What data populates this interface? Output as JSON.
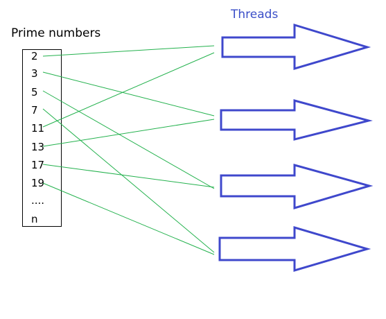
{
  "labels": {
    "primes_title": "Prime numbers",
    "threads_title": "Threads"
  },
  "primes": [
    "2",
    "3",
    "5",
    "7",
    "11",
    "13",
    "17",
    "19",
    "....",
    "n"
  ],
  "colors": {
    "arrow": "#3f48cc",
    "line": "#22b14c",
    "threads_text": "#3a4ec8"
  },
  "connections": [
    {
      "prime": "2",
      "thread": 1
    },
    {
      "prime": "3",
      "thread": 2
    },
    {
      "prime": "5",
      "thread": 3
    },
    {
      "prime": "7",
      "thread": 4
    },
    {
      "prime": "11",
      "thread": 1
    },
    {
      "prime": "13",
      "thread": 2
    },
    {
      "prime": "17",
      "thread": 3
    },
    {
      "prime": "19",
      "thread": 4
    }
  ]
}
